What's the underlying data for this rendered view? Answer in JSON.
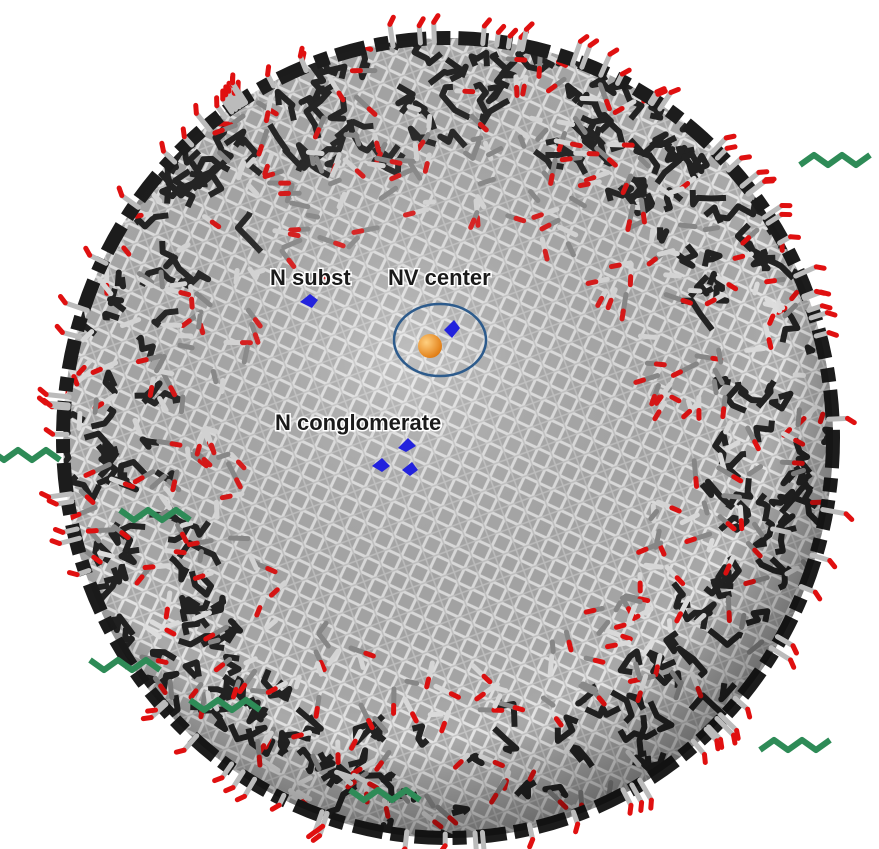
{
  "labels": {
    "n_subst": "N subst",
    "nv_center": "NV center",
    "n_conglomerate": "N conglomerate"
  }
}
